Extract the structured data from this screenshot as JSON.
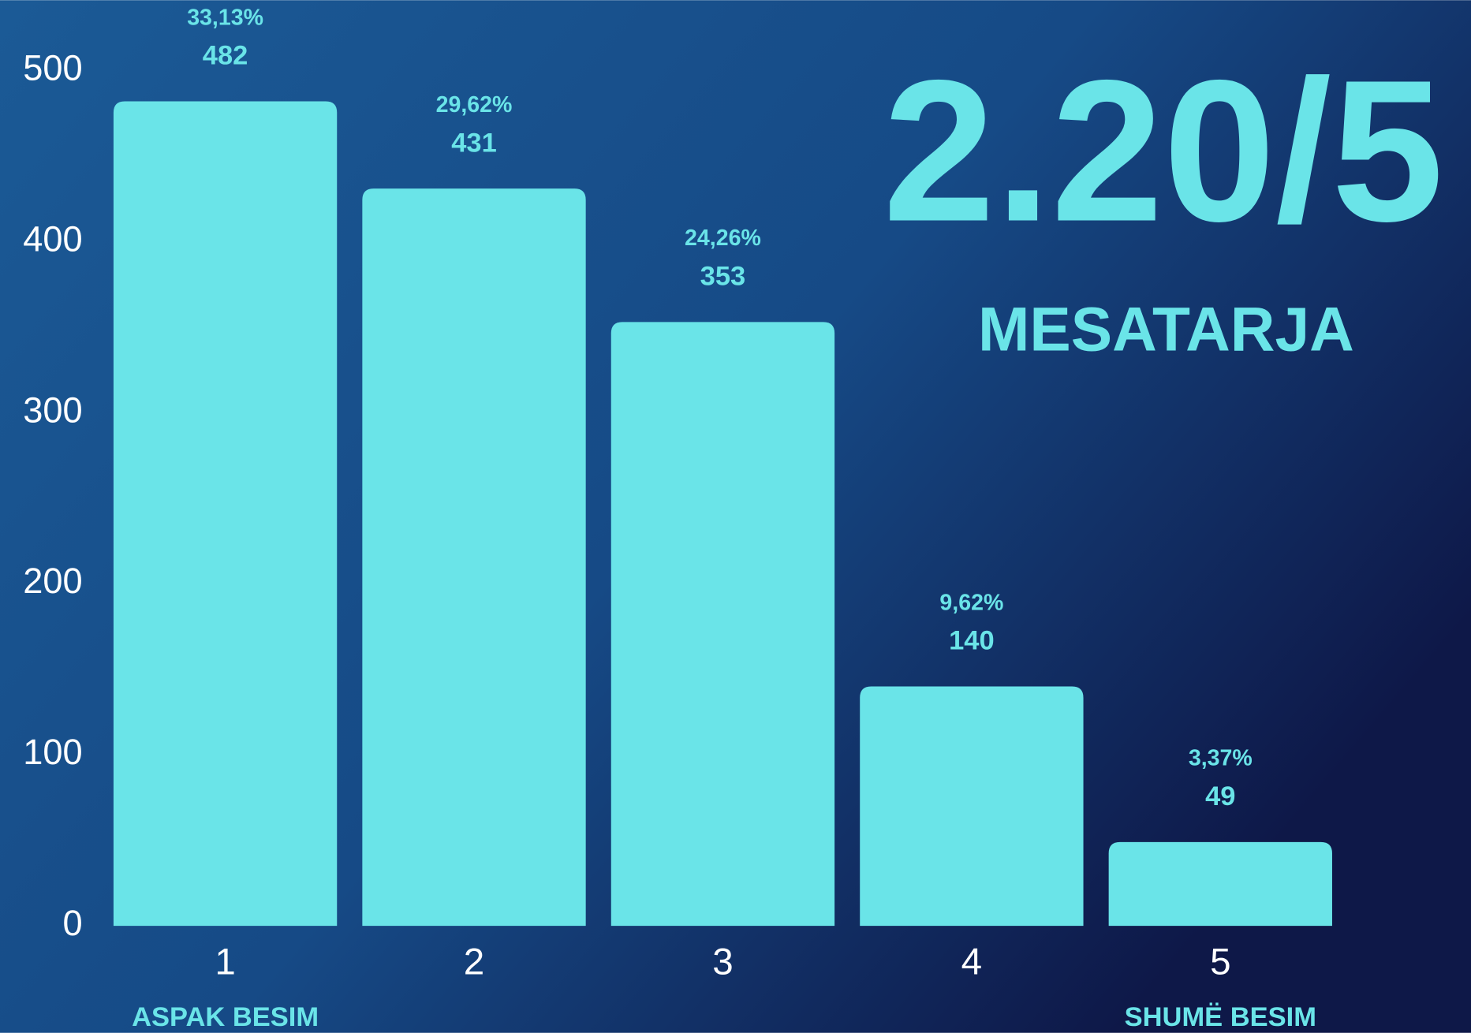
{
  "chart_data": {
    "type": "bar",
    "categories": [
      "1",
      "2",
      "3",
      "4",
      "5"
    ],
    "category_notes": [
      "ASPAK BESIM",
      null,
      null,
      null,
      "SHUMË BESIM"
    ],
    "values": [
      482,
      431,
      353,
      140,
      49
    ],
    "percentages": [
      {
        "value": 33.13,
        "label": "33,13%"
      },
      {
        "value": 29.62,
        "label": "29,62%"
      },
      {
        "value": 24.26,
        "label": "24,26%"
      },
      {
        "value": 9.62,
        "label": "9,62%"
      },
      {
        "value": 3.37,
        "label": "3,37%"
      }
    ],
    "color": "#6ae4e8",
    "ylim": [
      0,
      500
    ],
    "yticks": [
      0,
      100,
      200,
      300,
      400,
      500
    ],
    "grid": true,
    "annotations": [
      "2.20/5",
      "MESATARJA"
    ]
  }
}
